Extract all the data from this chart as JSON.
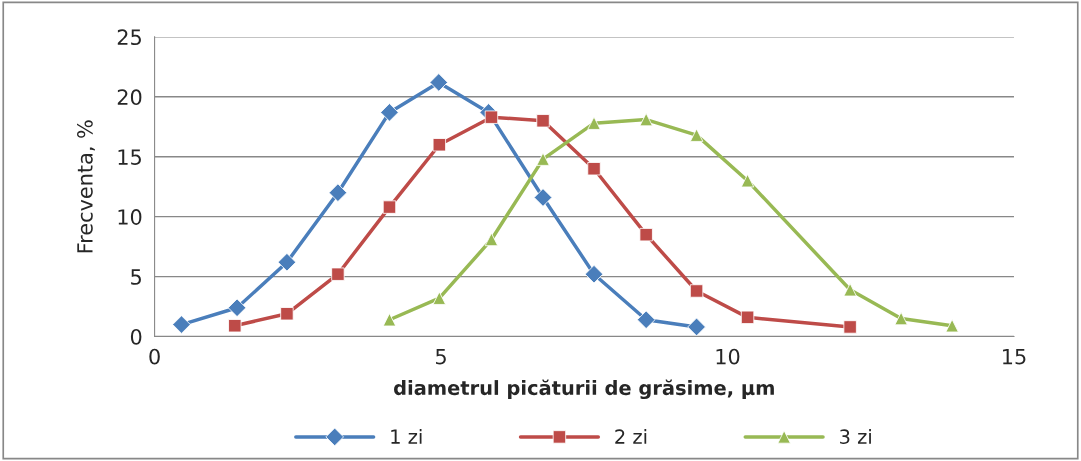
{
  "chart_data": {
    "type": "line",
    "xlabel": "diametrul picăturii de grăsime, μm",
    "ylabel": "Frecventa, %",
    "xlim": [
      0,
      15
    ],
    "xticks": [
      0,
      5,
      10,
      15
    ],
    "ylim": [
      0,
      25
    ],
    "yticks": [
      0,
      5,
      10,
      15,
      20,
      25
    ],
    "grid": "y",
    "legend": "bottom",
    "line_style": "solid",
    "series": [
      {
        "name": "1 zi",
        "color": "#4a7ebb",
        "marker": "diamond",
        "x": [
          0.47,
          1.44,
          2.31,
          3.2,
          4.1,
          4.96,
          5.83,
          6.78,
          7.67,
          8.58,
          9.46
        ],
        "values": [
          1.0,
          2.4,
          6.2,
          12,
          18.7,
          21.2,
          18.7,
          11.6,
          5.2,
          1.4,
          0.8
        ]
      },
      {
        "name": "2 zi",
        "color": "#be4b48",
        "marker": "square",
        "x": [
          1.4,
          2.31,
          3.2,
          4.1,
          4.97,
          5.88,
          6.78,
          7.67,
          8.58,
          9.46,
          10.35,
          12.14
        ],
        "values": [
          0.9,
          1.9,
          5.2,
          10.8,
          16,
          18.3,
          18,
          14,
          8.5,
          3.8,
          1.6,
          0.8
        ]
      },
      {
        "name": "3 zi",
        "color": "#98b954",
        "marker": "triangle",
        "x": [
          4.1,
          4.97,
          5.88,
          6.78,
          7.67,
          8.58,
          9.46,
          10.35,
          12.14,
          13.03,
          13.92
        ],
        "values": [
          1.4,
          3.2,
          8.1,
          14.8,
          17.8,
          18.1,
          16.8,
          13,
          3.9,
          1.5,
          0.9
        ]
      }
    ]
  }
}
